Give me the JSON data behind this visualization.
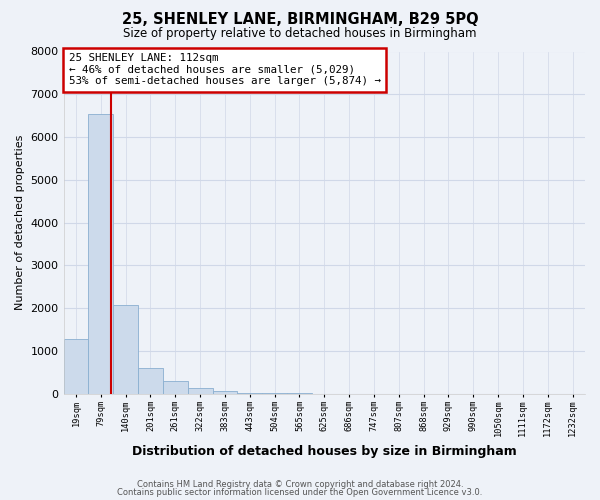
{
  "title": "25, SHENLEY LANE, BIRMINGHAM, B29 5PQ",
  "subtitle": "Size of property relative to detached houses in Birmingham",
  "xlabel": "Distribution of detached houses by size in Birmingham",
  "ylabel": "Number of detached properties",
  "footnote1": "Contains HM Land Registry data © Crown copyright and database right 2024.",
  "footnote2": "Contains public sector information licensed under the Open Government Licence v3.0.",
  "annotation_title": "25 SHENLEY LANE: 112sqm",
  "annotation_line1": "← 46% of detached houses are smaller (5,029)",
  "annotation_line2": "53% of semi-detached houses are larger (5,874) →",
  "bar_labels": [
    "19sqm",
    "79sqm",
    "140sqm",
    "201sqm",
    "261sqm",
    "322sqm",
    "383sqm",
    "443sqm",
    "504sqm",
    "565sqm",
    "625sqm",
    "686sqm",
    "747sqm",
    "807sqm",
    "868sqm",
    "929sqm",
    "990sqm",
    "1050sqm",
    "1111sqm",
    "1172sqm",
    "1232sqm"
  ],
  "bar_values": [
    1290,
    6550,
    2070,
    600,
    290,
    130,
    60,
    30,
    20,
    10,
    5,
    3,
    2,
    2,
    1,
    1,
    1,
    1,
    0,
    0,
    0
  ],
  "bar_color": "#ccdaeb",
  "bar_edge_color": "#8aafd0",
  "vline_color": "#cc0000",
  "annotation_box_edge_color": "#cc0000",
  "grid_color": "#d0d8e8",
  "bg_color": "#eef2f8",
  "plot_bg_color": "#eef2f8",
  "ylim": [
    0,
    8000
  ],
  "yticks": [
    0,
    1000,
    2000,
    3000,
    4000,
    5000,
    6000,
    7000,
    8000
  ],
  "vline_x": 1.42
}
